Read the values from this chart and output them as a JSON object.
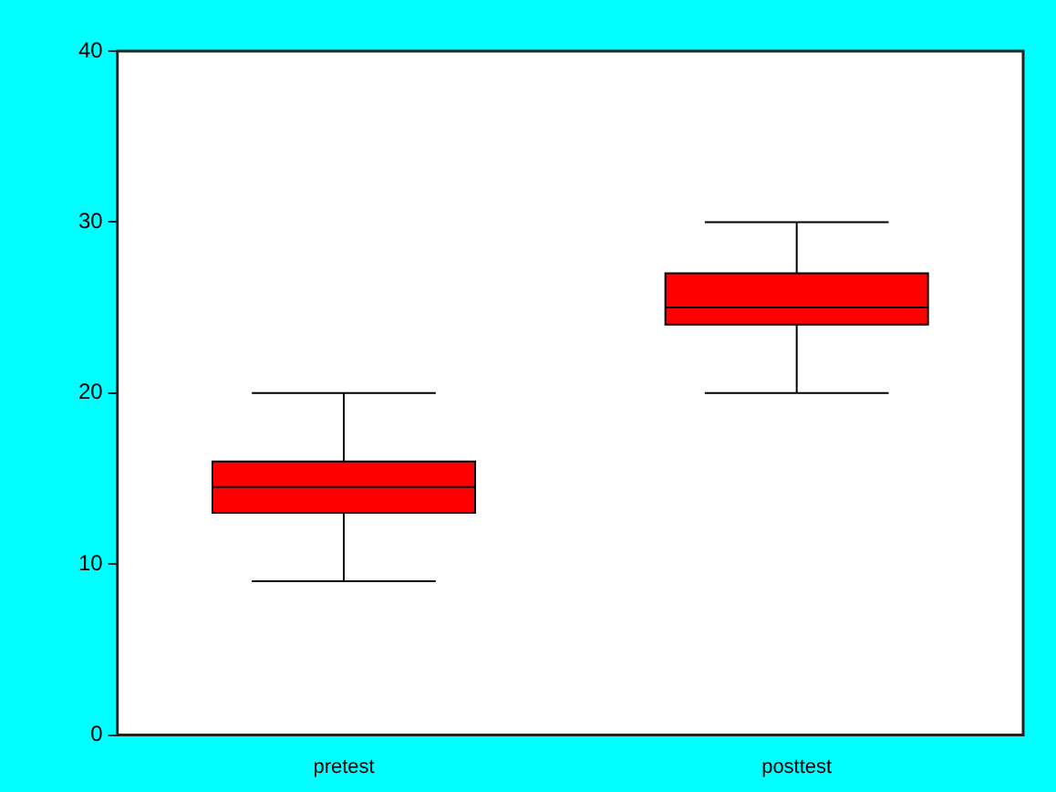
{
  "chart_data": {
    "type": "box",
    "categories": [
      "pretest",
      "posttest"
    ],
    "color": "#ff0000",
    "boxes": [
      {
        "low": 9,
        "q1": 13,
        "median": 14.5,
        "q3": 16,
        "high": 20
      },
      {
        "low": 20,
        "q1": 24,
        "median": 25,
        "q3": 27,
        "high": 30
      }
    ],
    "ylim": [
      0,
      40
    ],
    "yticks": [
      0,
      10,
      20,
      30,
      40
    ]
  }
}
